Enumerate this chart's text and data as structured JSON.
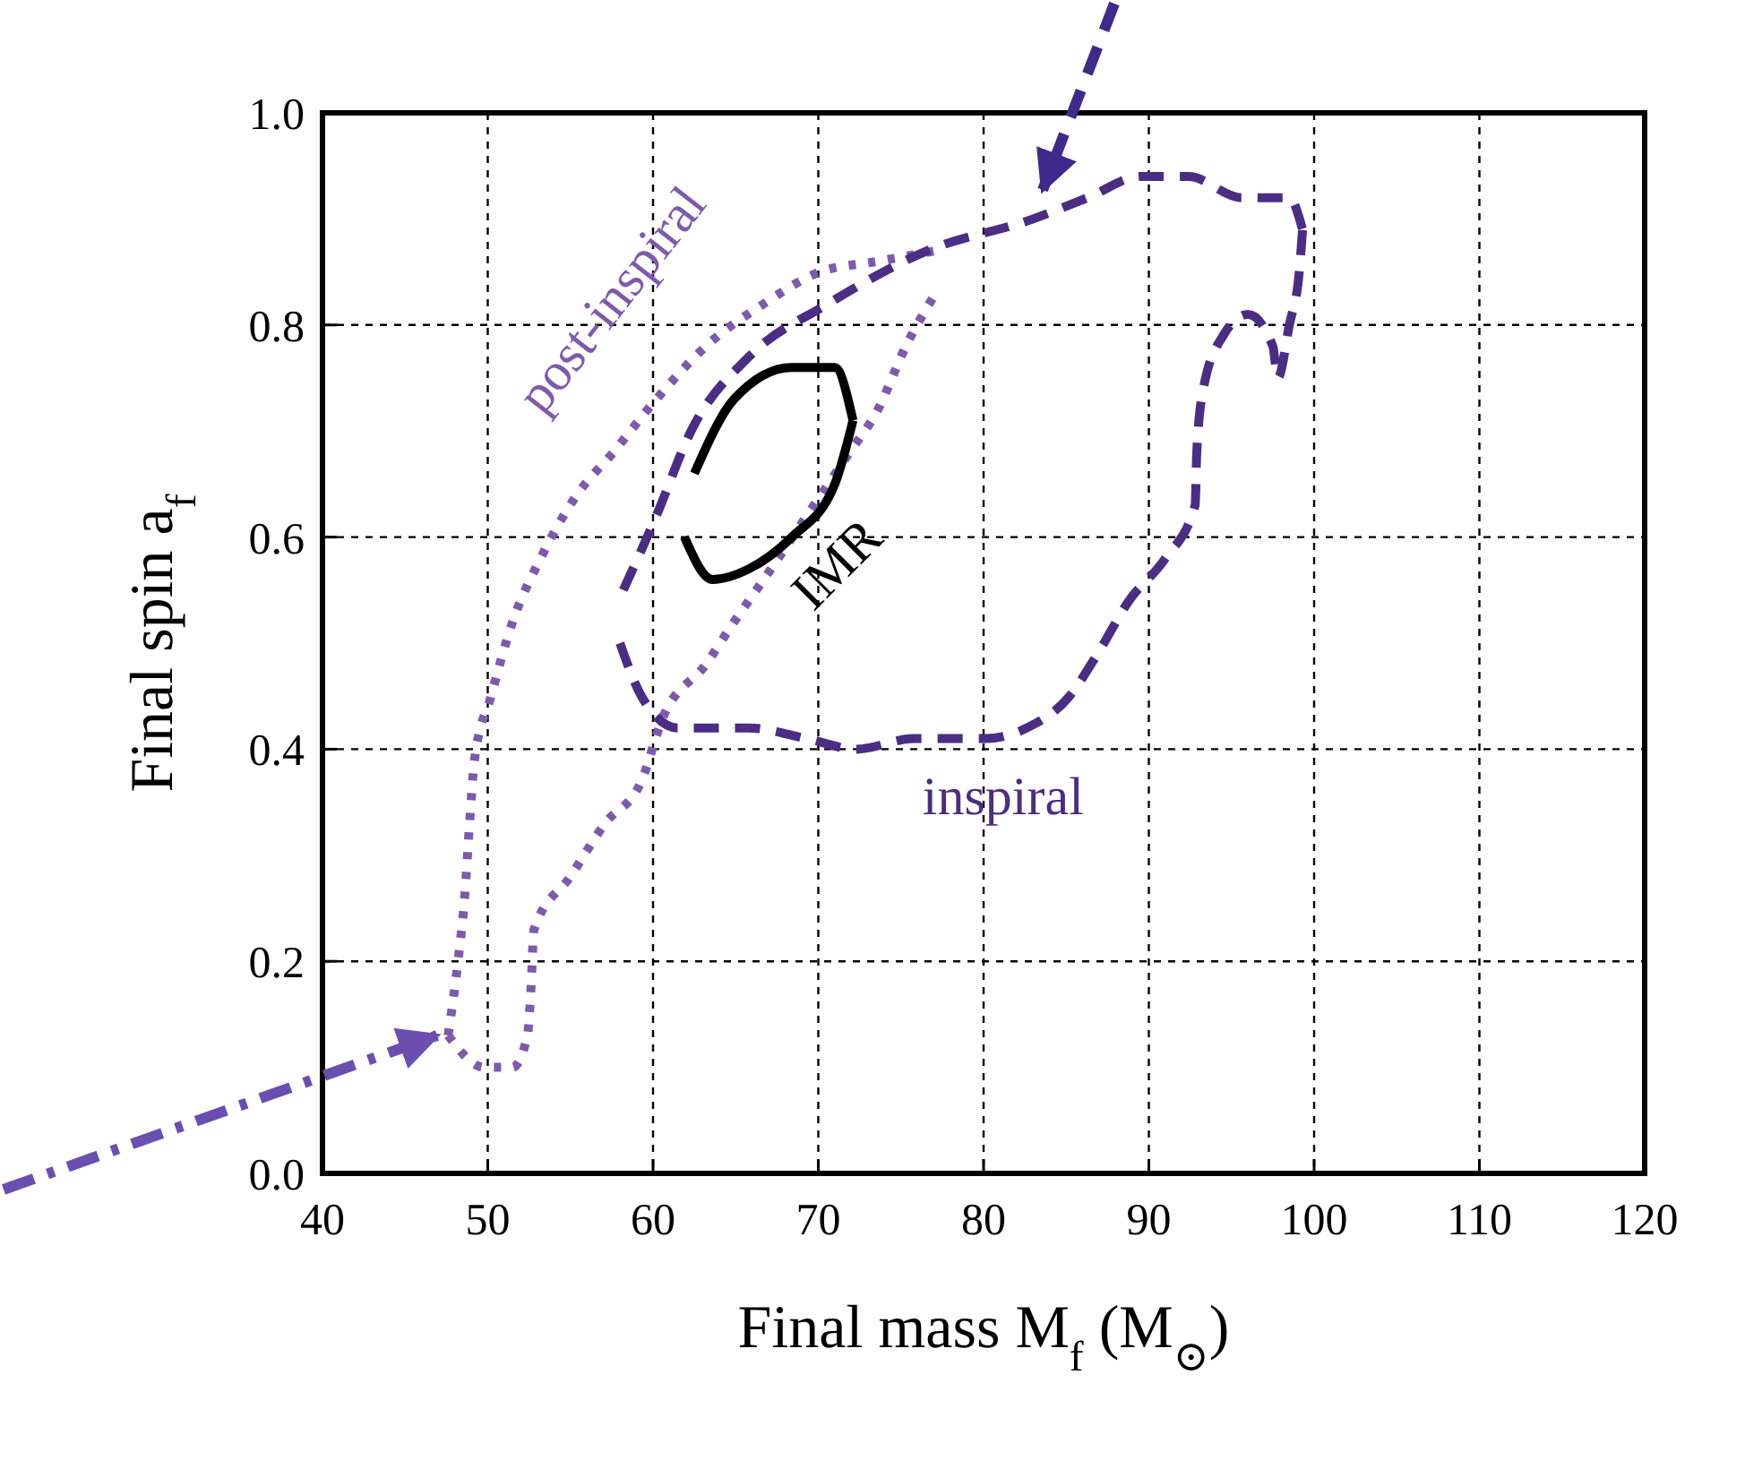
{
  "chart_data": {
    "type": "line",
    "xlabel": "Final mass M$_{f}$ (M$_{⊙}$)",
    "ylabel": "Final spin a$_{f}$",
    "xlim": [
      40,
      120
    ],
    "xticks": [
      40,
      50,
      60,
      70,
      80,
      90,
      100,
      110,
      120
    ],
    "ylim": [
      0,
      1
    ],
    "yticks": [
      {
        "value": 0,
        "label": "0.0"
      },
      0.2,
      0.4,
      0.6,
      0.8,
      {
        "value": 1,
        "label": "1.0"
      }
    ],
    "grid": true,
    "series": [
      {
        "name": "post-inspiral",
        "color": "#7e5aad",
        "line_style": "dotted",
        "x": [
          47.6,
          48.2,
          48.6,
          48.9,
          49.2,
          50.2,
          51.5,
          53.2,
          55.4,
          57.6,
          60.2,
          63.2,
          66.7,
          70.1,
          73.6,
          77.1
        ],
        "values": [
          0.13,
          0.2,
          0.26,
          0.33,
          0.39,
          0.45,
          0.52,
          0.58,
          0.64,
          0.68,
          0.73,
          0.78,
          0.82,
          0.85,
          0.86,
          0.87
        ]
      },
      {
        "color": "#7e5aad",
        "line_style": "dotted",
        "x": [
          47.6,
          49.8,
          51.5,
          52.4,
          52.6,
          52.8,
          55.0,
          57.1,
          59.3,
          60.6,
          63.2,
          64.9,
          66.7,
          69.3,
          71.9,
          73.6,
          75.3,
          77.1
        ],
        "values": [
          0.13,
          0.1,
          0.1,
          0.13,
          0.17,
          0.23,
          0.28,
          0.33,
          0.37,
          0.43,
          0.48,
          0.52,
          0.56,
          0.62,
          0.68,
          0.72,
          0.78,
          0.83
        ]
      },
      {
        "color": "#4b2d84",
        "line_style": "dashed",
        "x": [
          58.2,
          60.2,
          62.3,
          65.8,
          70.6,
          76.6,
          83.0,
          86.3,
          89.5,
          92.4,
          95.6,
          98.5,
          99.3
        ],
        "values": [
          0.55,
          0.62,
          0.7,
          0.77,
          0.82,
          0.87,
          0.9,
          0.92,
          0.94,
          0.94,
          0.92,
          0.92,
          0.89
        ]
      },
      {
        "name": "inspiral",
        "color": "#4b2d84",
        "line_style": "dashed",
        "x": [
          58.0,
          59.3,
          61.5,
          65.8,
          69.3,
          72.3,
          75.8,
          80.1,
          82.6,
          85.2,
          86.9,
          88.8,
          91.0,
          92.8,
          92.9,
          93.3,
          94.5,
          96.0,
          97.5,
          97.8,
          98.5,
          99.1,
          99.3
        ],
        "values": [
          0.5,
          0.45,
          0.42,
          0.42,
          0.41,
          0.4,
          0.41,
          0.41,
          0.42,
          0.45,
          0.49,
          0.54,
          0.58,
          0.63,
          0.68,
          0.74,
          0.79,
          0.81,
          0.78,
          0.75,
          0.8,
          0.85,
          0.89
        ]
      },
      {
        "color": "#000000",
        "line_style": "solid",
        "x": [
          62.5,
          64.9,
          68.4,
          71.0,
          72.1
        ],
        "values": [
          0.66,
          0.73,
          0.76,
          0.76,
          0.71
        ]
      },
      {
        "name": "IMR",
        "color": "#000000",
        "line_style": "solid",
        "x": [
          61.9,
          63.6,
          65.8,
          68.4,
          71.0,
          72.1
        ],
        "values": [
          0.6,
          0.56,
          0.57,
          0.6,
          0.65,
          0.71
        ]
      }
    ]
  }
}
